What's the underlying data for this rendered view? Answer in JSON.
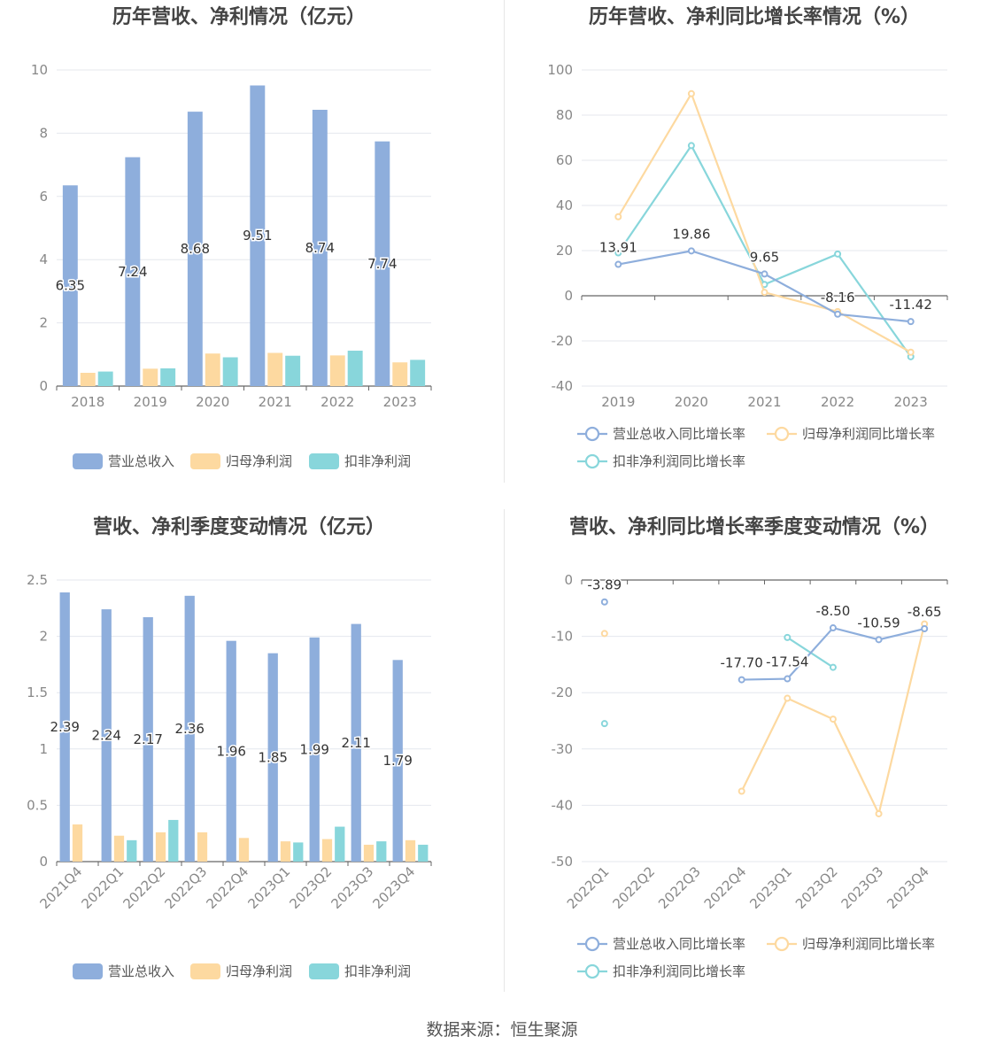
{
  "colors": {
    "revenue": "#8eaedc",
    "net_profit": "#fdd9a0",
    "deducted_profit": "#88d6db",
    "axis": "#666666",
    "grid": "#e4e7ee",
    "tick_label": "#888888",
    "title": "#444444"
  },
  "source_text": "数据来源：恒生聚源",
  "chart_data": [
    {
      "type": "bar",
      "title": "历年营收、净利情况（亿元）",
      "categories": [
        "2018",
        "2019",
        "2020",
        "2021",
        "2022",
        "2023"
      ],
      "ylim": [
        0,
        10
      ],
      "yticks": [
        0,
        2,
        4,
        6,
        8,
        10
      ],
      "grid": true,
      "legend_position": "bottom",
      "label_series": 0,
      "series": [
        {
          "name": "营业总收入",
          "values": [
            6.35,
            7.24,
            8.68,
            9.51,
            8.74,
            7.74
          ],
          "labels": [
            "6.35",
            "7.24",
            "8.68",
            "9.51",
            "8.74",
            "7.74"
          ]
        },
        {
          "name": "归母净利润",
          "values": [
            0.42,
            0.55,
            1.03,
            1.05,
            0.97,
            0.75
          ]
        },
        {
          "name": "扣非净利润",
          "values": [
            0.46,
            0.56,
            0.91,
            0.96,
            1.12,
            0.83
          ]
        }
      ]
    },
    {
      "type": "line",
      "title": "历年营收、净利同比增长率情况（%）",
      "categories": [
        "2019",
        "2020",
        "2021",
        "2022",
        "2023"
      ],
      "ylim": [
        -40,
        100
      ],
      "yticks": [
        -40,
        -20,
        0,
        20,
        40,
        60,
        80,
        100
      ],
      "grid": true,
      "legend_position": "bottom",
      "label_series": 0,
      "series": [
        {
          "name": "营业总收入同比增长率",
          "values": [
            13.91,
            19.86,
            9.65,
            -8.16,
            -11.42
          ],
          "labels": [
            "13.91",
            "19.86",
            "9.65",
            "-8.16",
            "-11.42"
          ]
        },
        {
          "name": "归母净利润同比增长率",
          "values": [
            35,
            89.5,
            1.5,
            -7,
            -25
          ]
        },
        {
          "name": "扣非净利润同比增长率",
          "values": [
            19,
            66.5,
            5,
            18.5,
            -27
          ]
        }
      ]
    },
    {
      "type": "bar",
      "title": "营收、净利季度变动情况（亿元）",
      "categories": [
        "2021Q4",
        "2022Q1",
        "2022Q2",
        "2022Q3",
        "2022Q4",
        "2023Q1",
        "2023Q2",
        "2023Q3",
        "2023Q4"
      ],
      "ylim": [
        0,
        2.5
      ],
      "yticks": [
        0,
        0.5,
        1,
        1.5,
        2,
        2.5
      ],
      "grid": true,
      "legend_position": "bottom",
      "label_series": 0,
      "series": [
        {
          "name": "营业总收入",
          "values": [
            2.39,
            2.24,
            2.17,
            2.36,
            1.96,
            1.85,
            1.99,
            2.11,
            1.79
          ],
          "labels": [
            "2.39",
            "2.24",
            "2.17",
            "2.36",
            "1.96",
            "1.85",
            "1.99",
            "2.11",
            "1.79"
          ]
        },
        {
          "name": "归母净利润",
          "values": [
            0.33,
            0.23,
            0.26,
            0.26,
            0.21,
            0.18,
            0.2,
            0.15,
            0.19
          ]
        },
        {
          "name": "扣非净利润",
          "values": [
            0,
            0.19,
            0.37,
            0,
            0,
            0.17,
            0.31,
            0.18,
            0.15
          ]
        }
      ]
    },
    {
      "type": "line",
      "title": "营收、净利同比增长率季度变动情况（%）",
      "categories": [
        "2022Q1",
        "2022Q2",
        "2022Q3",
        "2022Q4",
        "2023Q1",
        "2023Q2",
        "2023Q3",
        "2023Q4"
      ],
      "ylim": [
        -50,
        0
      ],
      "yticks": [
        -50,
        -40,
        -30,
        -20,
        -10,
        0
      ],
      "grid": true,
      "legend_position": "bottom",
      "label_series": 0,
      "series": [
        {
          "name": "营业总收入同比增长率",
          "values": [
            -3.89,
            null,
            null,
            -17.7,
            -17.54,
            -8.5,
            -10.59,
            -8.65
          ],
          "labels": [
            "-3.89",
            null,
            null,
            "-17.70",
            "-17.54",
            "-8.50",
            "-10.59",
            "-8.65"
          ]
        },
        {
          "name": "归母净利润同比增长率",
          "values": [
            -9.5,
            null,
            null,
            -37.5,
            -21,
            -24.7,
            -41.5,
            -7.8
          ]
        },
        {
          "name": "扣非净利润同比增长率",
          "values": [
            -25.5,
            null,
            null,
            null,
            -10.2,
            -15.5,
            null,
            null
          ]
        }
      ]
    }
  ]
}
